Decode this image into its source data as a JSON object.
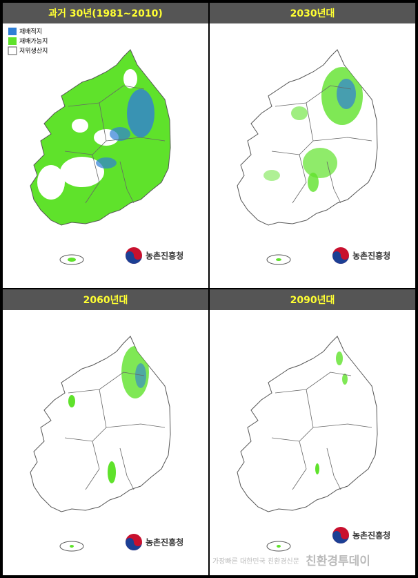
{
  "panels": [
    {
      "title": "과거 30년(1981~2010)",
      "logo": "농촌진흥청"
    },
    {
      "title": "2030년대",
      "logo": "농촌진흥청"
    },
    {
      "title": "2060년대",
      "logo": "농촌진흥청"
    },
    {
      "title": "2090년대",
      "logo": "농촌진흥청"
    }
  ],
  "legend": {
    "items": [
      {
        "label": "재배적지",
        "color": "#2f7fd6"
      },
      {
        "label": "재배가능지",
        "color": "#5fe22b"
      },
      {
        "label": "저위생산지",
        "color": "#ffffff"
      }
    ]
  },
  "watermark": {
    "text": "가장빠른 대한민국 친환경신문",
    "brand": "친환경투데이"
  }
}
